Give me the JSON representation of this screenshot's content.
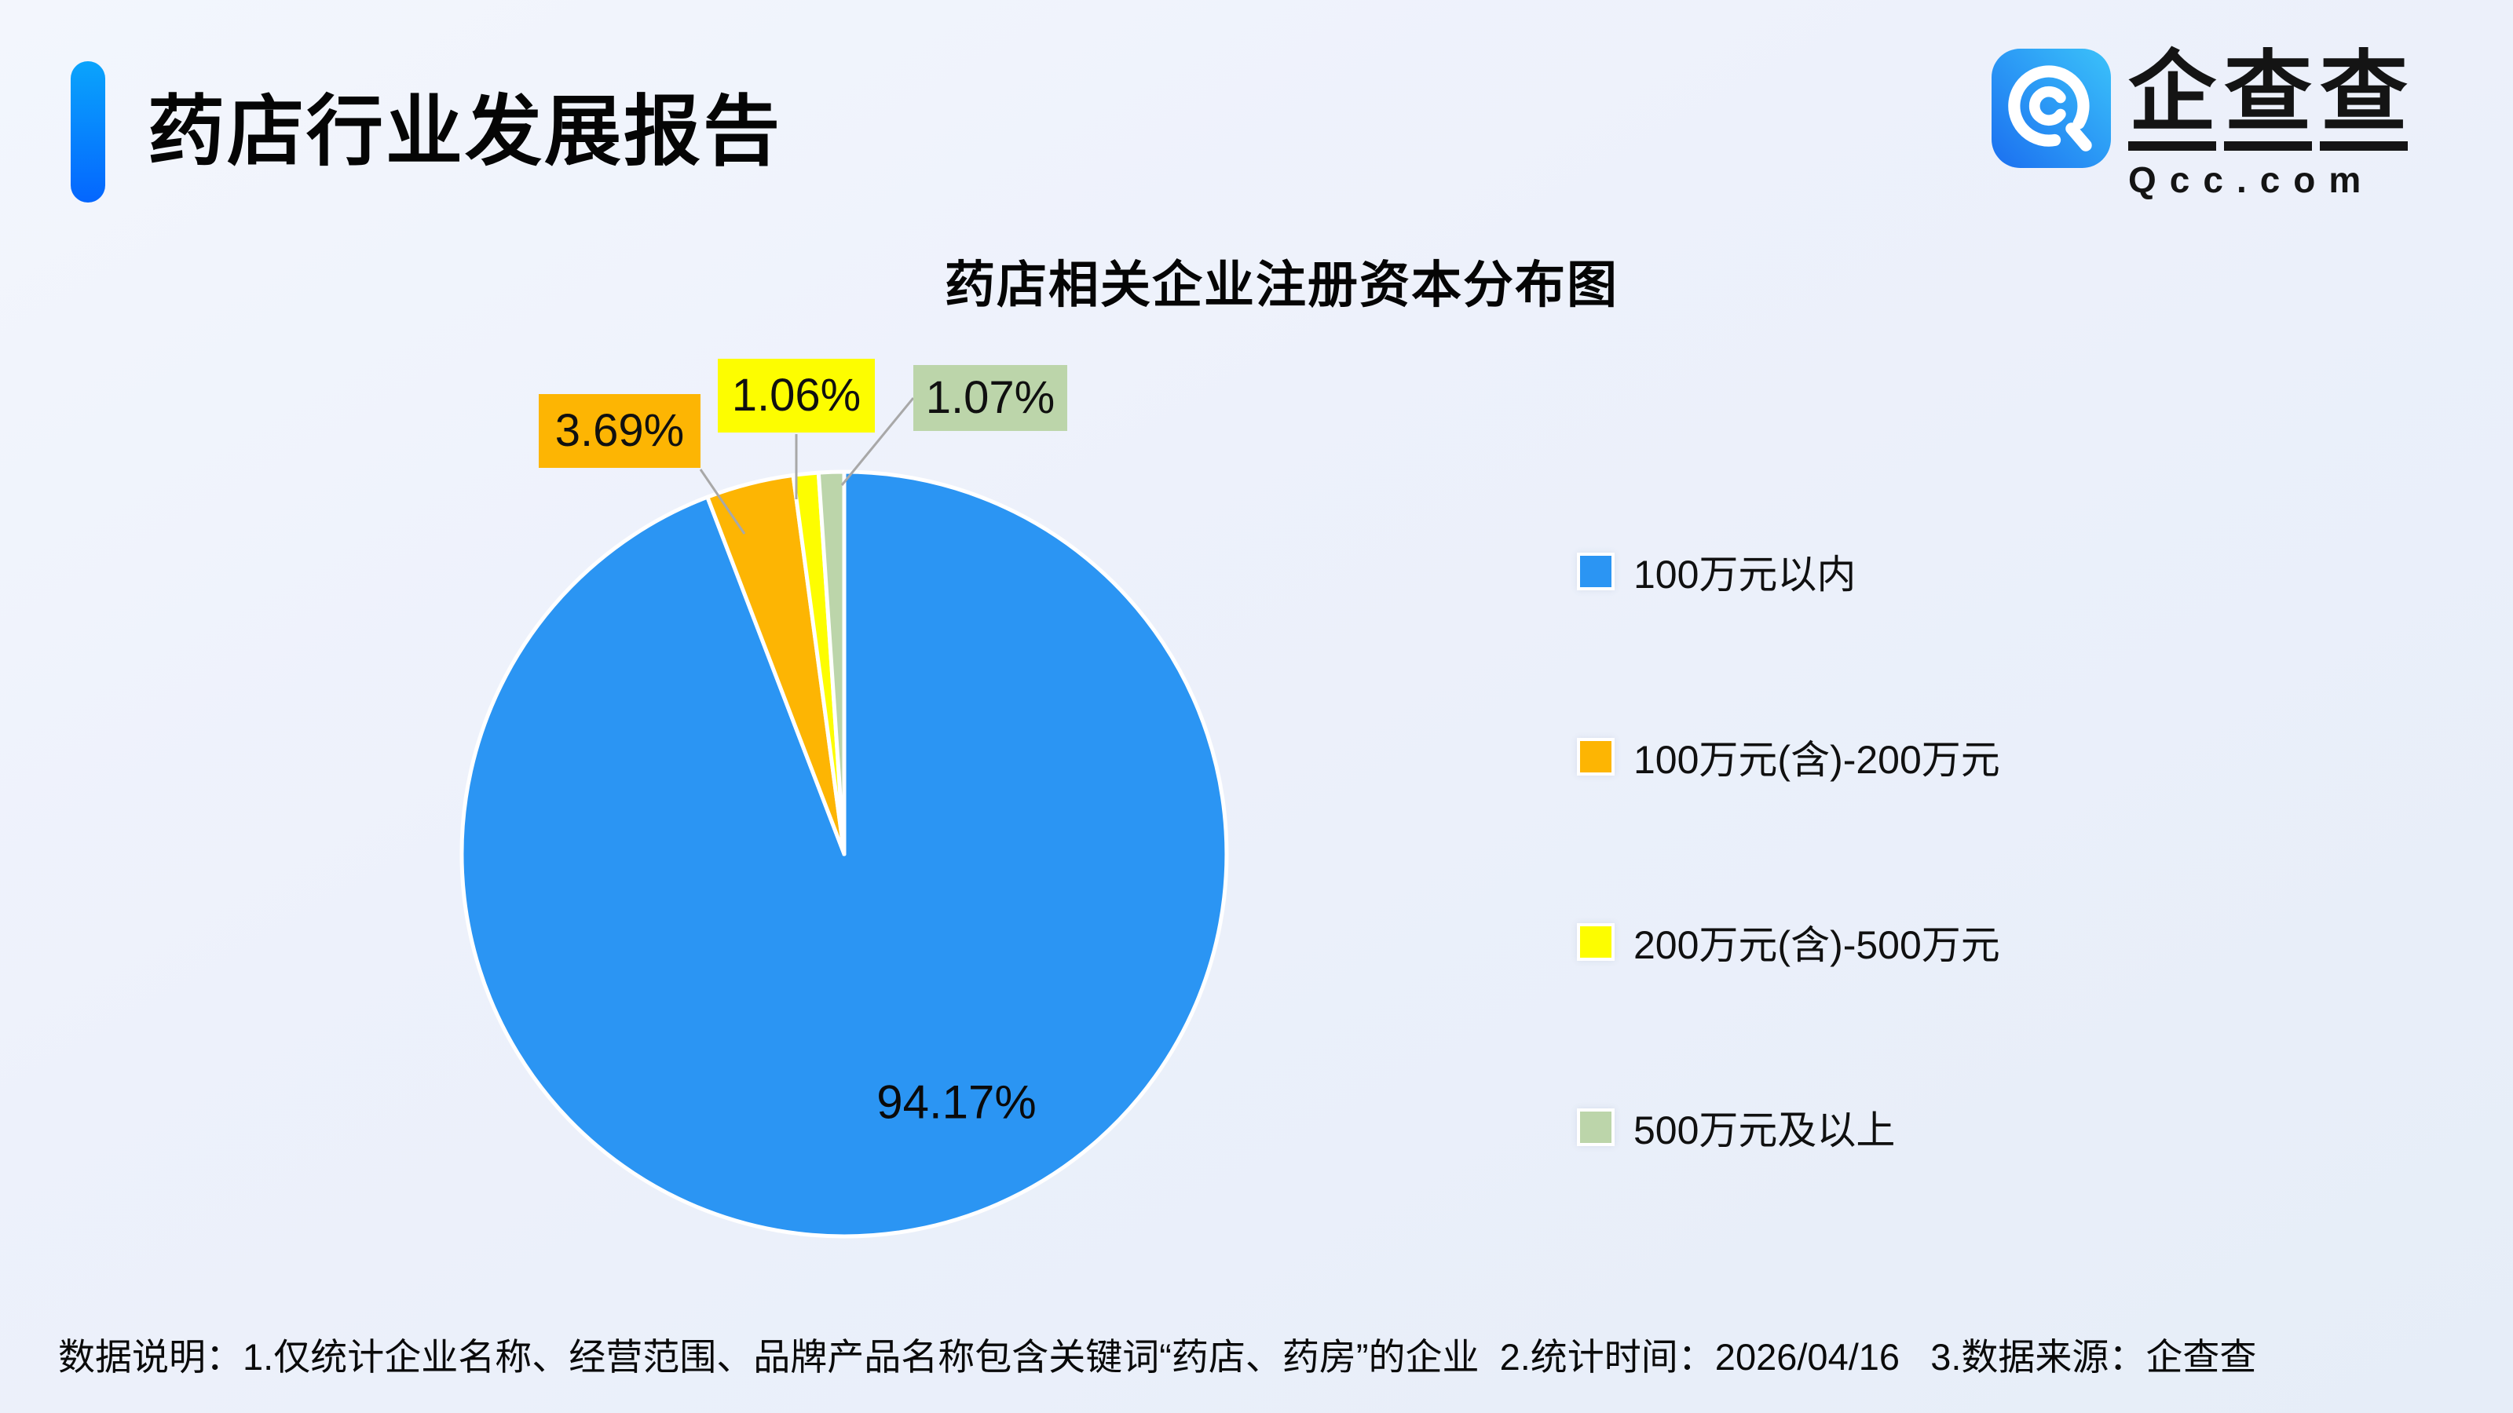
{
  "header": {
    "title": "药店行业发展报告"
  },
  "logo": {
    "brand": "企查查",
    "domain": "Qcc.com"
  },
  "chart_data": {
    "type": "pie",
    "title": "药店相关企业注册资本分布图",
    "unit": "%",
    "start_angle": "12-oclock",
    "direction": "clockwise",
    "legend_position": "right",
    "grid": false,
    "series": [
      {
        "name": "100万元以内",
        "value": 94.17,
        "label": "94.17%",
        "color": "#2B95F3",
        "label_placement": "inside"
      },
      {
        "name": "100万元(含)-200万元",
        "value": 3.69,
        "label": "3.69%",
        "color": "#FDB503",
        "label_placement": "callout"
      },
      {
        "name": "200万元(含)-500万元",
        "value": 1.06,
        "label": "1.06%",
        "color": "#FDFD00",
        "label_placement": "callout"
      },
      {
        "name": "500万元及以上",
        "value": 1.07,
        "label": "1.07%",
        "color": "#BCD5AA",
        "label_placement": "callout"
      }
    ]
  },
  "footnote": "数据说明：1.仅统计企业名称、经营范围、品牌产品名称包含关键词“药店、药房”的企业  2.统计时间：2026/04/16   3.数据来源：企查查"
}
